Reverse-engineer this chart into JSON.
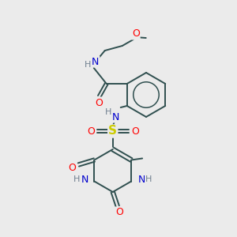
{
  "background_color": "#ebebeb",
  "bond_color": "#2f4f4f",
  "atom_colors": {
    "N": "#0000cd",
    "O": "#ff0000",
    "S": "#cccc00",
    "C": "#2f4f4f",
    "H": "#708090"
  },
  "figsize": [
    3.0,
    3.0
  ],
  "dpi": 100
}
